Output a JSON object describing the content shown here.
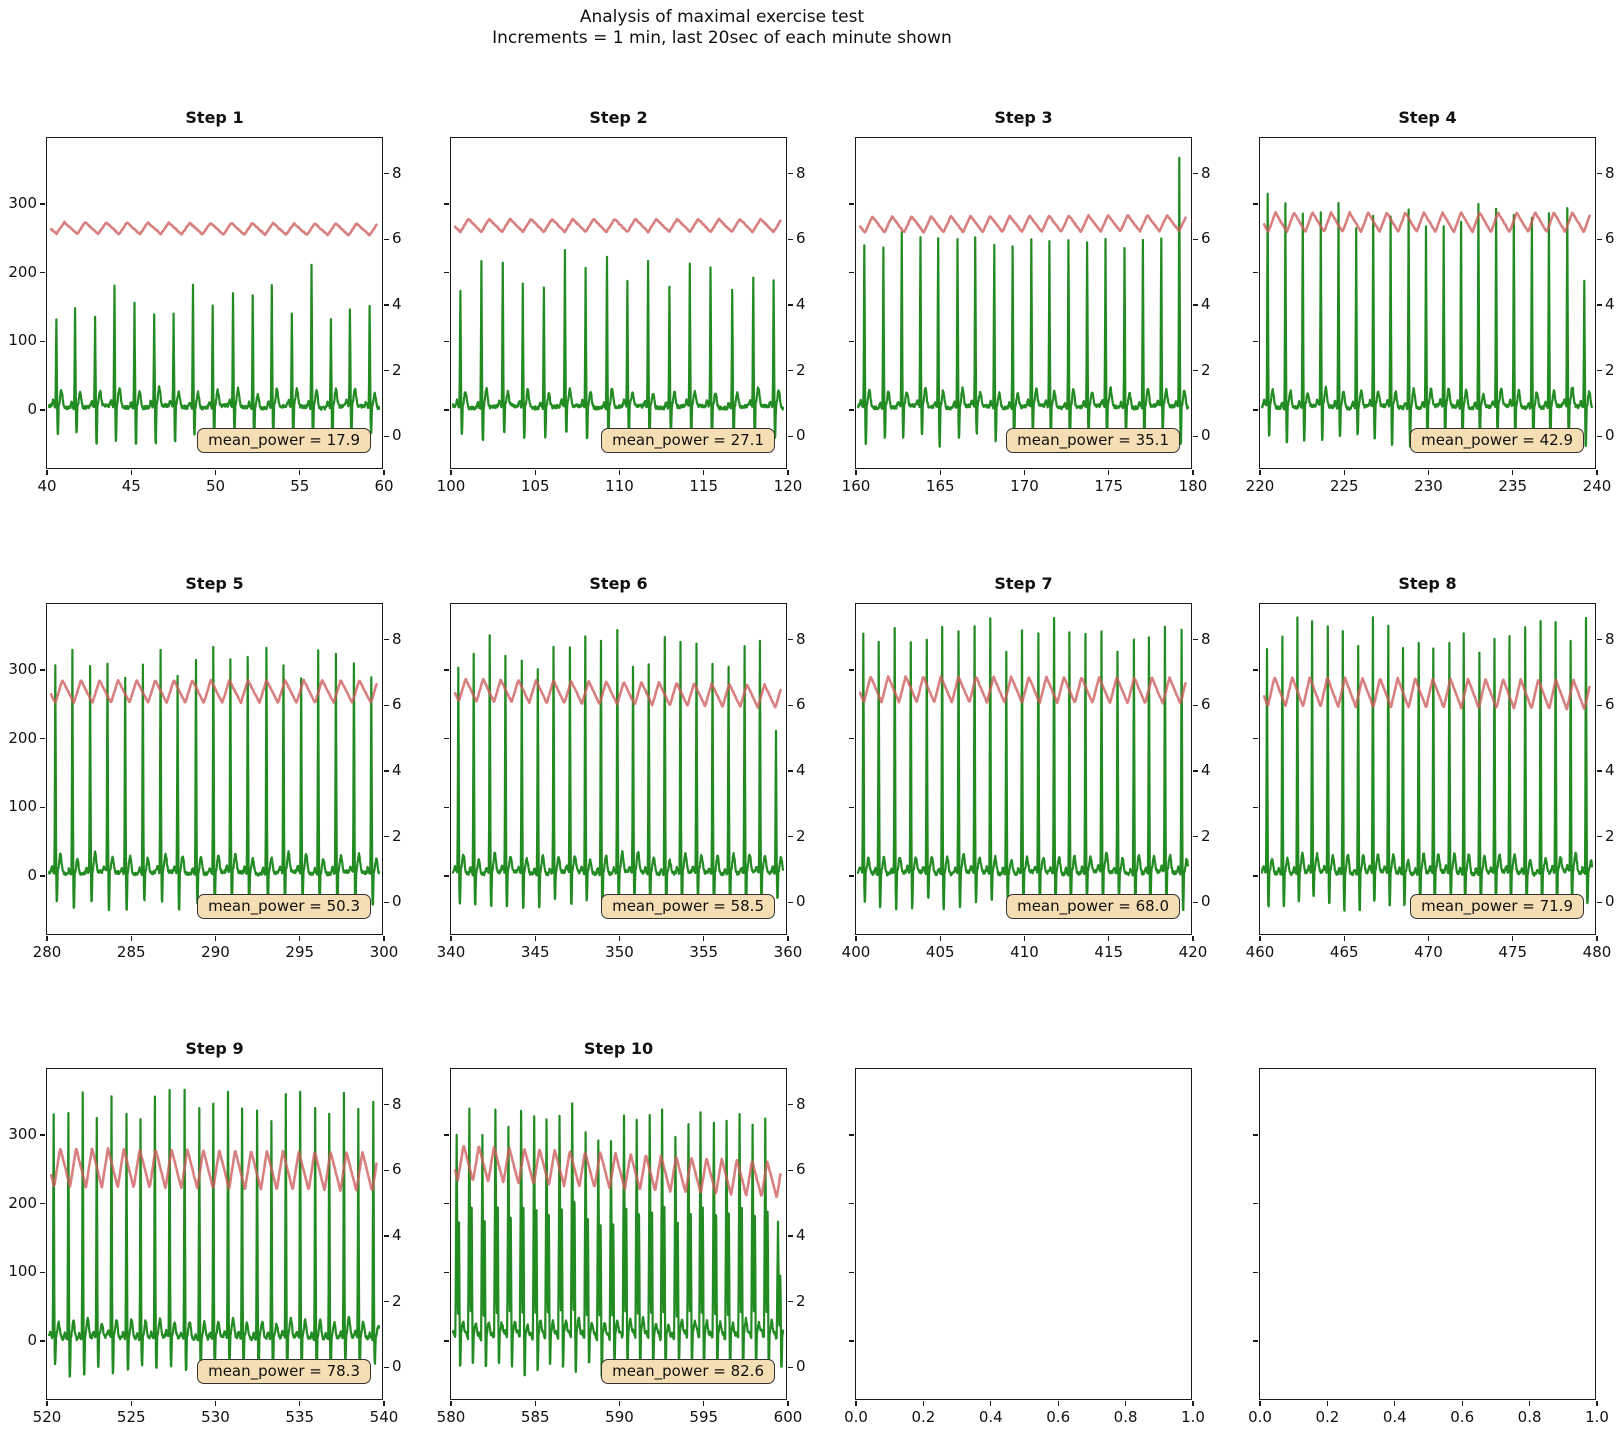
{
  "figure": {
    "suptitle_line1": "Analysis of maximal exercise test",
    "suptitle_line2": "Increments = 1 min, last 20sec of each minute shown",
    "colors": {
      "power_line": "#228B22",
      "sawtooth_line": "#CD5C5C",
      "annotation_bg": "#F5DEB3",
      "annotation_border": "#333333",
      "axis": "#1a1a1a"
    },
    "left_axis_tick_labels": [
      "300",
      "200",
      "100",
      "0"
    ],
    "left_axis_tick_values": [
      300,
      200,
      100,
      0
    ],
    "right_axis_tick_labels": [
      "8",
      "6",
      "4",
      "2",
      "0"
    ],
    "right_axis_tick_values": [
      8,
      6,
      4,
      2,
      0
    ],
    "left_ylim": [
      -87,
      396
    ],
    "right_ylim": [
      -1.03,
      9.09
    ],
    "grid": "off",
    "layout": "3 rows x 4 cols, steps 1-10 populated, last two axes empty"
  },
  "chart_data": [
    {
      "type": "line",
      "title": "Step 1",
      "xlim": [
        40,
        60
      ],
      "x_tick_labels": [
        "40",
        "45",
        "50",
        "55",
        "60"
      ],
      "x_tick_values": [
        40,
        45,
        50,
        55,
        60
      ],
      "mean_power": 17.9,
      "mean_power_label": "mean_power = 17.9",
      "series": [
        {
          "name": "power-ecg",
          "axis": "right",
          "n_beats": 17,
          "peak_range": [
            3.4,
            4.6
          ],
          "special_beats": [
            {
              "at": 0.79,
              "peak": 5.2
            }
          ],
          "wide": false
        },
        {
          "name": "sawtooth",
          "axis": "right",
          "center": 6.3,
          "amplitude": 0.18,
          "cycles": 16,
          "drift": -0.05
        }
      ]
    },
    {
      "type": "line",
      "title": "Step 2",
      "xlim": [
        100,
        120
      ],
      "x_tick_labels": [
        "100",
        "105",
        "110",
        "115",
        "120"
      ],
      "x_tick_values": [
        100,
        105,
        110,
        115,
        120
      ],
      "mean_power": 27.1,
      "mean_power_label": "mean_power = 27.1",
      "series": [
        {
          "name": "power-ecg",
          "axis": "right",
          "n_beats": 16,
          "peak_range": [
            4.3,
            5.6
          ],
          "special_beats": [],
          "wide": false
        },
        {
          "name": "sawtooth",
          "axis": "right",
          "center": 6.4,
          "amplitude": 0.2,
          "cycles": 16,
          "drift": 0
        }
      ]
    },
    {
      "type": "line",
      "title": "Step 3",
      "xlim": [
        160,
        180
      ],
      "x_tick_labels": [
        "160",
        "165",
        "170",
        "175",
        "180"
      ],
      "x_tick_values": [
        160,
        165,
        170,
        175,
        180
      ],
      "mean_power": 35.1,
      "mean_power_label": "mean_power = 35.1",
      "series": [
        {
          "name": "power-ecg",
          "axis": "right",
          "n_beats": 18,
          "peak_range": [
            5.7,
            6.5
          ],
          "special_beats": [
            {
              "at": 0.99,
              "peak": 8.5
            }
          ],
          "wide": false
        },
        {
          "name": "sawtooth",
          "axis": "right",
          "center": 6.45,
          "amplitude": 0.25,
          "cycles": 17,
          "drift": 0.05
        }
      ]
    },
    {
      "type": "line",
      "title": "Step 4",
      "xlim": [
        220,
        240
      ],
      "x_tick_labels": [
        "220",
        "225",
        "230",
        "235",
        "240"
      ],
      "x_tick_values": [
        220,
        225,
        230,
        235,
        240
      ],
      "mean_power": 42.9,
      "mean_power_label": "mean_power = 42.9",
      "series": [
        {
          "name": "power-ecg",
          "axis": "right",
          "n_beats": 19,
          "peak_range": [
            6.2,
            7.4
          ],
          "special_beats": [
            {
              "at": 0.99,
              "peak": 4.7
            }
          ],
          "wide": false
        },
        {
          "name": "sawtooth",
          "axis": "right",
          "center": 6.5,
          "amplitude": 0.3,
          "cycles": 18,
          "drift": 0
        }
      ]
    },
    {
      "type": "line",
      "title": "Step 5",
      "xlim": [
        280,
        300
      ],
      "x_tick_labels": [
        "280",
        "285",
        "290",
        "295",
        "300"
      ],
      "x_tick_values": [
        280,
        285,
        290,
        295,
        300
      ],
      "mean_power": 50.3,
      "mean_power_label": "mean_power = 50.3",
      "series": [
        {
          "name": "power-ecg",
          "axis": "right",
          "n_beats": 19,
          "peak_range": [
            6.8,
            7.9
          ],
          "special_beats": [],
          "wide": false
        },
        {
          "name": "sawtooth",
          "axis": "right",
          "center": 6.4,
          "amplitude": 0.35,
          "cycles": 18,
          "drift": 0
        }
      ]
    },
    {
      "type": "line",
      "title": "Step 6",
      "xlim": [
        340,
        360
      ],
      "x_tick_labels": [
        "340",
        "345",
        "350",
        "355",
        "360"
      ],
      "x_tick_values": [
        340,
        345,
        350,
        355,
        360
      ],
      "mean_power": 58.5,
      "mean_power_label": "mean_power = 58.5",
      "series": [
        {
          "name": "power-ecg",
          "axis": "right",
          "n_beats": 21,
          "peak_range": [
            7.0,
            8.3
          ],
          "special_beats": [
            {
              "at": 0.99,
              "peak": 5.2
            }
          ],
          "wide": false
        },
        {
          "name": "sawtooth",
          "axis": "right",
          "center": 6.35,
          "amplitude": 0.35,
          "cycles": 19,
          "drift": -0.2
        }
      ]
    },
    {
      "type": "line",
      "title": "Step 7",
      "xlim": [
        400,
        420
      ],
      "x_tick_labels": [
        "400",
        "405",
        "410",
        "415",
        "420"
      ],
      "x_tick_values": [
        400,
        405,
        410,
        415,
        420
      ],
      "mean_power": 68.0,
      "mean_power_label": "mean_power = 68.0",
      "series": [
        {
          "name": "power-ecg",
          "axis": "right",
          "n_beats": 21,
          "peak_range": [
            7.6,
            8.7
          ],
          "special_beats": [],
          "wide": false
        },
        {
          "name": "sawtooth",
          "axis": "right",
          "center": 6.45,
          "amplitude": 0.4,
          "cycles": 19,
          "drift": -0.05
        }
      ]
    },
    {
      "type": "line",
      "title": "Step 8",
      "xlim": [
        460,
        480
      ],
      "x_tick_labels": [
        "460",
        "465",
        "470",
        "475",
        "480"
      ],
      "x_tick_values": [
        460,
        465,
        470,
        475,
        480
      ],
      "mean_power": 71.9,
      "mean_power_label": "mean_power = 71.9",
      "series": [
        {
          "name": "power-ecg",
          "axis": "right",
          "n_beats": 22,
          "peak_range": [
            7.6,
            8.7
          ],
          "special_beats": [],
          "wide": false
        },
        {
          "name": "sawtooth",
          "axis": "right",
          "center": 6.35,
          "amplitude": 0.45,
          "cycles": 19,
          "drift": -0.1
        }
      ]
    },
    {
      "type": "line",
      "title": "Step 9",
      "xlim": [
        520,
        540
      ],
      "x_tick_labels": [
        "520",
        "525",
        "530",
        "535",
        "540"
      ],
      "x_tick_values": [
        520,
        525,
        530,
        535,
        540
      ],
      "mean_power": 78.3,
      "mean_power_label": "mean_power = 78.3",
      "series": [
        {
          "name": "power-ecg",
          "axis": "right",
          "n_beats": 23,
          "peak_range": [
            7.4,
            8.5
          ],
          "special_beats": [],
          "wide": false
        },
        {
          "name": "sawtooth",
          "axis": "right",
          "center": 6.0,
          "amplitude": 0.6,
          "cycles": 21,
          "drift": -0.15
        }
      ]
    },
    {
      "type": "line",
      "title": "Step 10",
      "xlim": [
        580,
        600
      ],
      "x_tick_labels": [
        "580",
        "585",
        "590",
        "595",
        "600"
      ],
      "x_tick_values": [
        580,
        585,
        590,
        595,
        600
      ],
      "mean_power": 82.6,
      "mean_power_label": "mean_power = 82.6",
      "series": [
        {
          "name": "power-ecg",
          "axis": "right",
          "n_beats": 26,
          "peak_range": [
            6.9,
            8.0
          ],
          "special_beats": [
            {
              "at": 0.99,
              "peak": 4.4
            }
          ],
          "wide": true
        },
        {
          "name": "sawtooth",
          "axis": "right",
          "center": 5.95,
          "amplitude": 0.55,
          "cycles": 22,
          "drift": -0.55
        }
      ]
    }
  ],
  "empty_subplots": [
    {
      "x_tick_labels": [
        "0.0",
        "0.2",
        "0.4",
        "0.6",
        "0.8",
        "1.0"
      ]
    },
    {
      "x_tick_labels": [
        "0.0",
        "0.2",
        "0.4",
        "0.6",
        "0.8",
        "1.0"
      ]
    }
  ]
}
